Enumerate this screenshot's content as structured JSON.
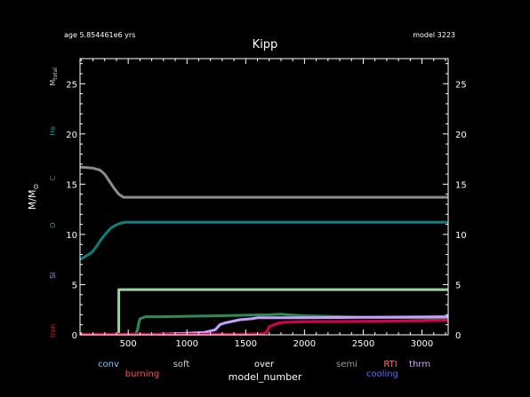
{
  "header": {
    "age_label": "age 5.854461e6 yrs",
    "model_label": "model 3223"
  },
  "chart_data": {
    "type": "line",
    "title": "Kipp",
    "xlabel": "model_number",
    "ylabel": "M/M",
    "ylabel_symbol": "⊙",
    "xlim": [
      90,
      3223
    ],
    "ylim": [
      0,
      27.5
    ],
    "x_ticks": [
      500,
      1000,
      1500,
      2000,
      2500,
      3000
    ],
    "y_ticks": [
      0,
      5,
      10,
      15,
      20,
      25
    ],
    "grid": false,
    "side_labels": [
      {
        "text": "M",
        "sub": "total",
        "color": "#cfcfcf",
        "y": 25.7
      },
      {
        "text": "He",
        "color": "#159a9a",
        "y": 20.3
      },
      {
        "text": "C",
        "color": "#2aa02a",
        "y": 15.6
      },
      {
        "text": "O",
        "color": "#2f9a4a",
        "y": 10.9
      },
      {
        "text": "Si",
        "color": "#b48cff",
        "y": 5.9
      },
      {
        "text": "Iron",
        "color": "#e02020",
        "y": 0.4
      }
    ],
    "legend": {
      "placement": "bottom",
      "items": [
        {
          "label": "conv",
          "color": "#8fbfff"
        },
        {
          "label": "burning",
          "color": "#ff5050"
        },
        {
          "label": "soft",
          "color": "#cfcfcf"
        },
        {
          "label": "over",
          "color": "#ffffff"
        },
        {
          "label": "semi",
          "color": "#9a9a9a"
        },
        {
          "label": "RTI",
          "color": "#ff7060"
        },
        {
          "label": "cooling",
          "color": "#5a6cff"
        },
        {
          "label": "thrm",
          "color": "#d8a8ff"
        }
      ]
    },
    "series": [
      {
        "color": "#8c8c8c",
        "width": 3,
        "x": [
          90,
          200,
          260,
          300,
          340,
          380,
          420,
          460,
          600,
          3223
        ],
        "y": [
          16.7,
          16.6,
          16.4,
          16.0,
          15.3,
          14.6,
          14.0,
          13.7,
          13.7,
          13.7
        ]
      },
      {
        "color": "#0e7e7e",
        "width": 3,
        "x": [
          90,
          150,
          190,
          230,
          270,
          310,
          350,
          390,
          430,
          470,
          600,
          3223
        ],
        "y": [
          7.5,
          7.9,
          8.2,
          8.8,
          9.5,
          10.1,
          10.6,
          10.9,
          11.1,
          11.2,
          11.2,
          11.2
        ]
      },
      {
        "color": "#9cd69c",
        "width": 3,
        "x": [
          420,
          420,
          3223
        ],
        "y": [
          0,
          4.5,
          4.5
        ]
      },
      {
        "color": "#2e8b57",
        "width": 3,
        "x": [
          560,
          580,
          590,
          600,
          650,
          700,
          800,
          1000,
          1300,
          1500,
          1700,
          1800,
          1850,
          2000,
          2500,
          3223
        ],
        "y": [
          0,
          0.5,
          1.2,
          1.6,
          1.8,
          1.8,
          1.8,
          1.85,
          1.9,
          1.95,
          2.0,
          2.05,
          2.0,
          1.9,
          1.75,
          1.65
        ]
      },
      {
        "color": "#c9a0ff",
        "width": 3,
        "x": [
          760,
          1000,
          1150,
          1240,
          1280,
          1300,
          1330,
          1450,
          1550,
          1600,
          2000,
          2500,
          3223
        ],
        "y": [
          0.05,
          0.15,
          0.25,
          0.5,
          1.0,
          1.1,
          1.2,
          1.5,
          1.6,
          1.7,
          1.7,
          1.75,
          1.8
        ]
      },
      {
        "color": "#d9004c",
        "width": 3,
        "x": [
          90,
          1000,
          1500,
          1650,
          1680,
          1700,
          1760,
          1800,
          1850,
          2000,
          2500,
          3000,
          3223
        ],
        "y": [
          0.05,
          0.05,
          0.05,
          0.1,
          0.3,
          0.8,
          1.1,
          1.2,
          1.25,
          1.3,
          1.35,
          1.4,
          1.45
        ]
      }
    ]
  }
}
